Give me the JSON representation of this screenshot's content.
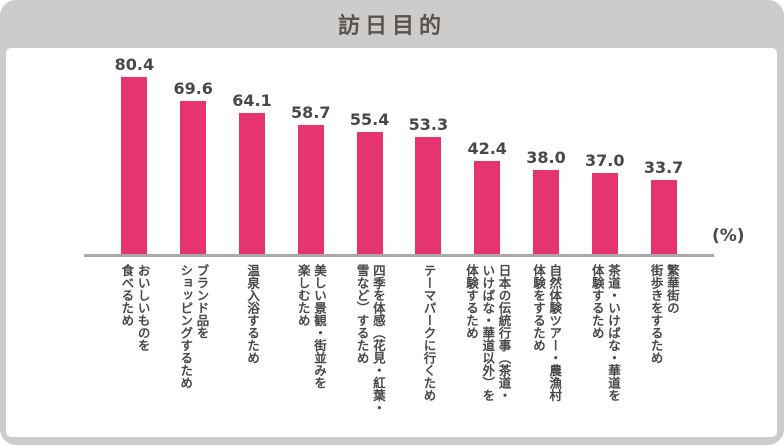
{
  "title": "訪日目的",
  "colors": {
    "card_background": "#cdccca",
    "panel_background": "#ffffff",
    "bar": "#e6346e",
    "axis": "#aba9a7",
    "value_text": "#4a4846",
    "title_text": "#595450"
  },
  "chart_data": {
    "type": "bar",
    "title": "訪日目的",
    "unit": "(%)",
    "ylim": [
      0,
      100
    ],
    "grid": false,
    "legend": false,
    "bar_color": "#e6346e",
    "categories": [
      "おいしいものを\n食べるため",
      "ブランド品を\nショッピングするため",
      "温泉入浴するため",
      "美しい景観・街並みを\n楽しむため",
      "四季を体感（花見・紅葉・\n雪など）するため",
      "テーマパークに行くため",
      "日本の伝統行事（茶道・\nいけばな・華道以外）を\n体験するため",
      "自然体験ツアー・農漁村\n体験をするため",
      "茶道・いけばな・華道を\n体験するため",
      "繁華街の\n街歩きをするため"
    ],
    "values": [
      80.4,
      69.6,
      64.1,
      58.7,
      55.4,
      53.3,
      42.4,
      38.0,
      37.0,
      33.7
    ],
    "value_labels": [
      "80.4",
      "69.6",
      "64.1",
      "58.7",
      "55.4",
      "53.3",
      "42.4",
      "38.0",
      "37.0",
      "33.7"
    ]
  }
}
